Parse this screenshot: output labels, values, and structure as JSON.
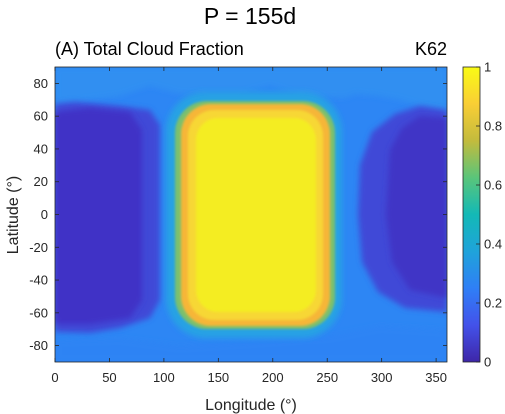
{
  "chart_data": {
    "type": "heatmap",
    "suptitle": "P = 155d",
    "panel_title": "(A) Total Cloud Fraction",
    "panel_tag": "K62",
    "xlabel": "Longitude (°)",
    "ylabel": "Latitude (°)",
    "xlim": [
      0,
      360
    ],
    "ylim": [
      -90,
      90
    ],
    "xticks": [
      0,
      50,
      100,
      150,
      200,
      250,
      300,
      350
    ],
    "yticks": [
      -80,
      -60,
      -40,
      -20,
      0,
      20,
      40,
      60,
      80
    ],
    "colorbar": {
      "range": [
        0,
        1
      ],
      "ticks": [
        0,
        0.2,
        0.4,
        0.6,
        0.8,
        1
      ],
      "tick_labels": [
        "0",
        "0.2",
        "0.4",
        "0.6",
        "0.8",
        "1"
      ],
      "colormap": "parula"
    },
    "features": [
      {
        "region": "substellar cloud deck",
        "lon_range": [
          110,
          250
        ],
        "lat_range": [
          -70,
          68
        ],
        "value": 0.95
      },
      {
        "region": "deck rim",
        "value": 0.8
      },
      {
        "region": "surrounding mid-latitudes",
        "value": 0.28
      },
      {
        "region": "western night side",
        "lon_range": [
          0,
          90
        ],
        "lat_range": [
          -60,
          65
        ],
        "value": 0.15
      },
      {
        "region": "eastern night side",
        "lon_range": [
          265,
          360
        ],
        "lat_range": [
          -55,
          65
        ],
        "value": 0.17
      },
      {
        "region": "polar caps",
        "value": 0.25
      }
    ],
    "grid": false
  }
}
